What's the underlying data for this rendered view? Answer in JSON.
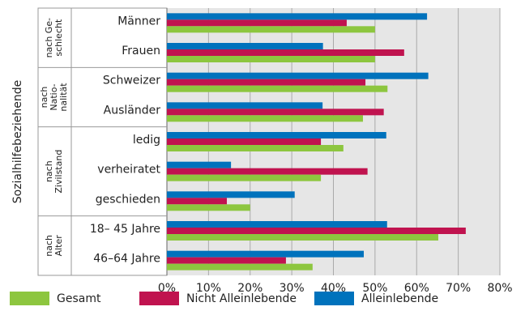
{
  "chart_data": {
    "type": "bar",
    "orientation": "horizontal",
    "y_label": "Sozialhilfebeziehende",
    "categories": [
      "Männer",
      "Frauen",
      "Schweizer",
      "Ausländer",
      "ledig",
      "verheiratet",
      "geschieden",
      "18– 45 Jahre",
      "46–64 Jahre"
    ],
    "groups": [
      {
        "lines": [
          "nach Ge-",
          "schlecht"
        ]
      },
      {
        "lines": [
          "nach",
          "Natio-",
          "nalität"
        ]
      },
      {
        "lines": [
          "nach",
          "Zivilstand"
        ]
      },
      {
        "lines": [
          "nach",
          "Alter"
        ]
      }
    ],
    "series": [
      {
        "name": "Gesamt",
        "color": "#8dc63f",
        "values": [
          50,
          50,
          53,
          47.1,
          42.4,
          37,
          20,
          65.2,
          35
        ]
      },
      {
        "name": "Nicht Alleinlebende",
        "color": "#c0134f",
        "values": [
          43.2,
          57,
          47.7,
          52.1,
          37,
          48.2,
          14.4,
          71.8,
          28.6
        ]
      },
      {
        "name": "Alleinlebende",
        "color": "#0072bc",
        "values": [
          62.5,
          37.5,
          62.8,
          37.4,
          52.7,
          15.4,
          30.7,
          52.9,
          47.3
        ]
      }
    ],
    "xlim": [
      0,
      80
    ],
    "xticks": [
      {
        "value": 0,
        "label": "0%"
      },
      {
        "value": 10,
        "label": "10%"
      },
      {
        "value": 20,
        "label": "20%"
      },
      {
        "value": 30,
        "label": "30%"
      },
      {
        "value": 40,
        "label": "40%"
      },
      {
        "value": 50,
        "label": "50%"
      },
      {
        "value": 60,
        "label": "60%"
      },
      {
        "value": 70,
        "label": "70%"
      },
      {
        "value": 80,
        "label": "80%"
      }
    ],
    "grid": true,
    "legend": "bottom"
  }
}
